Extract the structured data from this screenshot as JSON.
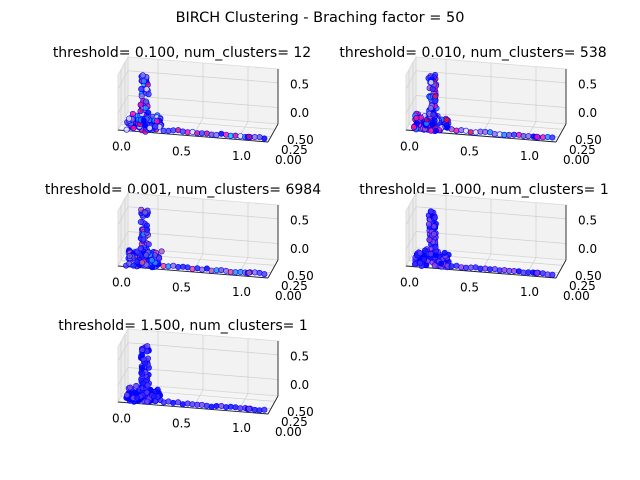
{
  "figure": {
    "suptitle": "BIRCH Clustering - Braching factor = 50"
  },
  "chart_data": [
    {
      "type": "scatter",
      "projection": "3d",
      "title": "threshold= 0.100, num_clusters= 12",
      "x_ticks": [
        "0.0",
        "0.5",
        "1.0"
      ],
      "y_ticks": [
        "0.00",
        "0.25",
        "0.50"
      ],
      "z_ticks": [
        "0.0",
        "0.5"
      ],
      "xlim": [
        0,
        1.05
      ],
      "ylim": [
        0,
        0.55
      ],
      "zlim": [
        -0.1,
        0.9
      ],
      "colormap": "cool-to-red",
      "point_colors": [
        "#0000ff",
        "#4444ff",
        "#6a5acd",
        "#00bfff",
        "#1e90ff",
        "#c71585",
        "#ff1493",
        "#9370db",
        "#e0e0ff"
      ]
    },
    {
      "type": "scatter",
      "projection": "3d",
      "title": "threshold= 0.010, num_clusters= 538",
      "x_ticks": [
        "0.0",
        "0.5",
        "1.0"
      ],
      "y_ticks": [
        "0.00",
        "0.25",
        "0.50"
      ],
      "z_ticks": [
        "0.0",
        "0.5"
      ],
      "xlim": [
        0,
        1.05
      ],
      "ylim": [
        0,
        0.55
      ],
      "zlim": [
        -0.1,
        0.9
      ],
      "colormap": "cool-to-red",
      "point_colors": [
        "#0000ff",
        "#3333ff",
        "#6a5acd",
        "#9370db",
        "#b05aa0",
        "#ff1493",
        "#dc143c",
        "#1e90ff",
        "#e0e0ff"
      ]
    },
    {
      "type": "scatter",
      "projection": "3d",
      "title": "threshold= 0.001, num_clusters= 6984",
      "x_ticks": [
        "0.0",
        "0.5",
        "1.0"
      ],
      "y_ticks": [
        "0.00",
        "0.25",
        "0.50"
      ],
      "z_ticks": [
        "0.0",
        "0.5"
      ],
      "xlim": [
        0,
        1.05
      ],
      "ylim": [
        0,
        0.55
      ],
      "zlim": [
        -0.1,
        0.9
      ],
      "colormap": "cool-to-red",
      "point_colors": [
        "#0000ff",
        "#2222ff",
        "#4b3cff",
        "#6a5acd",
        "#9370db",
        "#c06090",
        "#ff4466",
        "#1e90ff"
      ]
    },
    {
      "type": "scatter",
      "projection": "3d",
      "title": "threshold= 1.000, num_clusters= 1",
      "x_ticks": [
        "0.0",
        "0.5",
        "1.0"
      ],
      "y_ticks": [
        "0.00",
        "0.25",
        "0.50"
      ],
      "z_ticks": [
        "0.0",
        "0.5"
      ],
      "xlim": [
        0,
        1.05
      ],
      "ylim": [
        0,
        0.55
      ],
      "zlim": [
        -0.1,
        0.9
      ],
      "colormap": "cool-to-red",
      "point_colors": [
        "#0000ff",
        "#1a1aff",
        "#3a2bff",
        "#5b3cf0",
        "#7a4ae0",
        "#9a40d0"
      ]
    },
    {
      "type": "scatter",
      "projection": "3d",
      "title": "threshold= 1.500, num_clusters= 1",
      "x_ticks": [
        "0.0",
        "0.5",
        "1.0"
      ],
      "y_ticks": [
        "0.00",
        "0.25",
        "0.50"
      ],
      "z_ticks": [
        "0.0",
        "0.5"
      ],
      "xlim": [
        0,
        1.05
      ],
      "ylim": [
        0,
        0.55
      ],
      "zlim": [
        -0.1,
        0.9
      ],
      "colormap": "cool-to-red",
      "point_colors": [
        "#0000ff",
        "#1a1aff",
        "#3a2bff",
        "#5b3cf0",
        "#7a4ae0"
      ]
    }
  ]
}
